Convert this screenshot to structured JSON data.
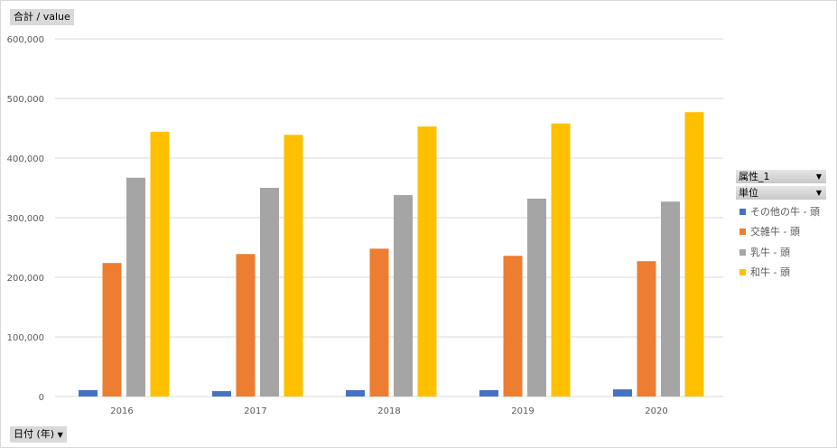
{
  "field_buttons": {
    "value_field": "合計 / value",
    "axis_field": "日付 (年)",
    "axis_arrow": "▼"
  },
  "legend": {
    "filters": [
      {
        "label": "属性_1",
        "arrow": "▼"
      },
      {
        "label": "単位",
        "arrow": "▼"
      }
    ],
    "entries": [
      {
        "label": "その他の牛 - 頭",
        "color": "#4472c4"
      },
      {
        "label": "交雑牛 - 頭",
        "color": "#ed7d31"
      },
      {
        "label": "乳牛 - 頭",
        "color": "#a5a5a5"
      },
      {
        "label": "和牛 - 頭",
        "color": "#ffc000"
      }
    ]
  },
  "chart_data": {
    "type": "bar",
    "title": "",
    "xlabel": "日付 (年)",
    "ylabel": "合計 / value",
    "categories": [
      "2016",
      "2017",
      "2018",
      "2019",
      "2020"
    ],
    "ylim": [
      0,
      600000
    ],
    "yticks": [
      0,
      100000,
      200000,
      300000,
      400000,
      500000,
      600000
    ],
    "ytick_labels": [
      "0",
      "100,000",
      "200,000",
      "300,000",
      "400,000",
      "500,000",
      "600,000"
    ],
    "grid": true,
    "legend_position": "right",
    "series": [
      {
        "name": "その他の牛 - 頭",
        "color": "#4472c4",
        "values": [
          10600,
          9000,
          10600,
          10600,
          12000
        ]
      },
      {
        "name": "交雑牛 - 頭",
        "color": "#ed7d31",
        "values": [
          224000,
          239000,
          248000,
          236000,
          227000
        ]
      },
      {
        "name": "乳牛 - 頭",
        "color": "#a5a5a5",
        "values": [
          367000,
          350000,
          338000,
          332000,
          327000
        ]
      },
      {
        "name": "和牛 - 頭",
        "color": "#ffc000",
        "values": [
          444000,
          439000,
          453000,
          458000,
          477000
        ]
      }
    ]
  }
}
